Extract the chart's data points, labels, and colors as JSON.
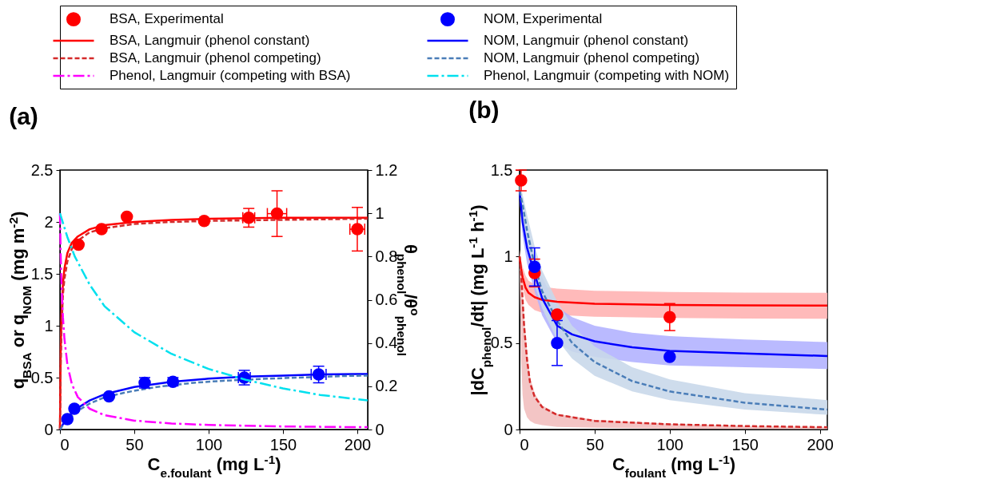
{
  "chart_data": [
    {
      "type": "line",
      "title": "(a)",
      "xlabel": "C$_{e,foulant}$ (mg L$^{-1}$)",
      "ylabel": "q$_{BSA}$ or q$_{NOM}$ (mg m$^{-2}$)",
      "y2label": "θ$_{phenol}$/θ$^{o}$$_{phenol}$",
      "xlim": [
        0,
        207
      ],
      "xticks": [
        0,
        50,
        100,
        150,
        200
      ],
      "ylim": [
        0,
        2.5
      ],
      "yticks": [
        0,
        0.5,
        1,
        1.5,
        2,
        2.5
      ],
      "y2lim": [
        0,
        1.2
      ],
      "y2ticks": [
        0,
        0.2,
        0.4,
        0.6,
        0.8,
        1,
        1.2
      ],
      "legend": "top",
      "series": [
        {
          "type": "scatter",
          "name": "BSA, Experimental",
          "color": "#ff0000",
          "marker": "circle",
          "x": [
            12.5,
            28,
            45,
            97,
            127,
            146,
            200
          ],
          "values": [
            1.78,
            1.93,
            2.05,
            2.01,
            2.04,
            2.08,
            1.93
          ],
          "errors": [
            null,
            null,
            null,
            null,
            0.09,
            0.22,
            0.21
          ],
          "xerrors": [
            null,
            null,
            null,
            null,
            4,
            6.5,
            5
          ]
        },
        {
          "type": "scatter",
          "name": "NOM, Experimental",
          "color": "#0000ff",
          "marker": "circle",
          "x": [
            5,
            9.7,
            33,
            57,
            76,
            124,
            174
          ],
          "values": [
            0.1,
            0.2,
            0.32,
            0.45,
            0.46,
            0.5,
            0.53
          ],
          "errors": [
            null,
            null,
            null,
            0.05,
            0.04,
            0.07,
            0.08
          ],
          "xerrors": [
            null,
            null,
            null,
            null,
            null,
            4,
            5
          ]
        },
        {
          "name": "BSA, Langmuir (phenol constant)",
          "color": "#ff0000",
          "line_style": "solid",
          "x": [
            0,
            0.5,
            1,
            2,
            3,
            5,
            8,
            12,
            20,
            30,
            50,
            75,
            100,
            150,
            200,
            207
          ],
          "values": [
            0,
            0.75,
            1.1,
            1.4,
            1.55,
            1.7,
            1.8,
            1.86,
            1.93,
            1.97,
            2.0,
            2.02,
            2.03,
            2.04,
            2.04,
            2.04
          ]
        },
        {
          "name": "NOM, Langmuir (phenol constant)",
          "color": "#0000ff",
          "line_style": "solid",
          "x": [
            0,
            2,
            5,
            10,
            20,
            30,
            50,
            75,
            100,
            125,
            150,
            175,
            200,
            207
          ],
          "values": [
            0,
            0.05,
            0.11,
            0.19,
            0.28,
            0.34,
            0.41,
            0.46,
            0.49,
            0.51,
            0.52,
            0.53,
            0.535,
            0.535
          ]
        },
        {
          "name": "BSA, Langmuir (phenol competing)",
          "color": "#d42a2a",
          "line_style": "dashed",
          "x": [
            0,
            0.5,
            1,
            2,
            3,
            5,
            8,
            12,
            20,
            30,
            50,
            75,
            100,
            150,
            200,
            207
          ],
          "values": [
            0,
            0.6,
            0.95,
            1.3,
            1.45,
            1.62,
            1.74,
            1.82,
            1.9,
            1.94,
            1.98,
            2.0,
            2.01,
            2.02,
            2.03,
            2.03
          ]
        },
        {
          "name": "NOM, Langmuir (phenol competing)",
          "color": "#4a7db8",
          "line_style": "dashed",
          "x": [
            0,
            2,
            5,
            12,
            20,
            30,
            45,
            65,
            90,
            110,
            140,
            160,
            190,
            207
          ],
          "values": [
            0,
            0.04,
            0.09,
            0.18,
            0.25,
            0.31,
            0.36,
            0.41,
            0.45,
            0.47,
            0.49,
            0.5,
            0.515,
            0.52
          ]
        },
        {
          "name": "Phenol, Langmuir (competing with BSA)",
          "color": "#ff00ff",
          "line_style": "dashdot",
          "axis": "y2",
          "x": [
            0,
            0.5,
            1,
            2,
            3,
            5,
            8,
            12,
            20,
            30,
            50,
            75,
            100,
            150,
            200,
            207
          ],
          "values": [
            1,
            0.81,
            0.68,
            0.52,
            0.42,
            0.3,
            0.21,
            0.15,
            0.096,
            0.066,
            0.041,
            0.028,
            0.021,
            0.014,
            0.011,
            0.011
          ]
        },
        {
          "name": "Phenol, Langmuir (competing with NOM)",
          "color": "#00e0ee",
          "line_style": "dashdot",
          "axis": "y2",
          "x": [
            0,
            5,
            10,
            20,
            30,
            50,
            75,
            100,
            125,
            150,
            175,
            200,
            207
          ],
          "values": [
            1,
            0.89,
            0.8,
            0.67,
            0.57,
            0.45,
            0.35,
            0.28,
            0.23,
            0.19,
            0.16,
            0.14,
            0.135
          ]
        }
      ]
    },
    {
      "type": "line",
      "title": "(b)",
      "xlabel": "C$_{foulant}$ (mg L$^{-1}$)",
      "ylabel": "|dC$_{phenol}$/dt| (mg L$^{-1}$ h$^{-1}$)",
      "xlim": [
        0,
        205
      ],
      "xticks": [
        0,
        50,
        100,
        150,
        200
      ],
      "ylim": [
        0,
        1.5
      ],
      "yticks": [
        0,
        0.5,
        1,
        1.5
      ],
      "legend": "top",
      "series": [
        {
          "type": "scatter",
          "name": "BSA, Experimental",
          "color": "#ff0000",
          "marker": "circle",
          "x": [
            1,
            10,
            25,
            100
          ],
          "values": [
            1.44,
            0.905,
            0.665,
            0.65
          ],
          "errors": [
            0.06,
            0.08,
            null,
            0.078
          ]
        },
        {
          "type": "scatter",
          "name": "NOM, Experimental",
          "color": "#0000ff",
          "marker": "circle",
          "x": [
            10,
            25,
            100
          ],
          "values": [
            0.94,
            0.5,
            0.42
          ],
          "errors": [
            0.11,
            0.13,
            null
          ]
        },
        {
          "name": "BSA, Langmuir (phenol constant)",
          "color": "#ff0000",
          "line_style": "solid",
          "x": [
            0,
            1,
            2,
            4,
            6,
            10,
            15,
            25,
            50,
            100,
            150,
            205
          ],
          "values": [
            1.0,
            0.93,
            0.88,
            0.82,
            0.79,
            0.765,
            0.75,
            0.738,
            0.727,
            0.72,
            0.718,
            0.716
          ],
          "lower": [
            0.96,
            0.88,
            0.82,
            0.75,
            0.72,
            0.69,
            0.675,
            0.662,
            0.652,
            0.645,
            0.642,
            0.64
          ],
          "upper": [
            1.04,
            0.98,
            0.94,
            0.89,
            0.86,
            0.84,
            0.825,
            0.815,
            0.802,
            0.795,
            0.792,
            0.79
          ]
        },
        {
          "name": "NOM, Langmuir (phenol constant)",
          "color": "#0000ff",
          "line_style": "solid",
          "x": [
            0,
            2,
            5,
            10,
            15,
            25,
            35,
            50,
            75,
            100,
            150,
            205
          ],
          "values": [
            1.38,
            1.2,
            1.05,
            0.9,
            0.76,
            0.6,
            0.55,
            0.51,
            0.475,
            0.455,
            0.44,
            0.425
          ],
          "lower": [
            1.34,
            1.12,
            0.96,
            0.8,
            0.66,
            0.5,
            0.45,
            0.42,
            0.39,
            0.37,
            0.36,
            0.35
          ],
          "upper": [
            1.42,
            1.28,
            1.14,
            1.0,
            0.88,
            0.71,
            0.65,
            0.6,
            0.56,
            0.54,
            0.52,
            0.505
          ]
        },
        {
          "name": "BSA, Langmuir (phenol competing)",
          "color": "#d42a2a",
          "line_style": "dashed",
          "x": [
            0,
            1,
            2,
            3,
            5,
            7,
            10,
            15,
            25,
            50,
            100,
            150,
            205
          ],
          "values": [
            1.0,
            0.9,
            0.75,
            0.6,
            0.4,
            0.27,
            0.19,
            0.13,
            0.085,
            0.05,
            0.03,
            0.02,
            0.013
          ],
          "lower": [
            0.9,
            0.4,
            0.2,
            0.12,
            0.07,
            0.05,
            0.035,
            0.025,
            0.015,
            0.01,
            0.005,
            0.003,
            0.002
          ],
          "upper": [
            1.0,
            0.92,
            0.8,
            0.66,
            0.45,
            0.3,
            0.21,
            0.14,
            0.09,
            0.055,
            0.033,
            0.022,
            0.015
          ]
        },
        {
          "name": "NOM, Langmuir (phenol competing)",
          "color": "#4a7db8",
          "line_style": "dashed",
          "x": [
            0,
            2,
            5,
            10,
            15,
            25,
            35,
            50,
            75,
            100,
            150,
            205
          ],
          "values": [
            1.38,
            1.3,
            1.15,
            0.95,
            0.8,
            0.63,
            0.5,
            0.39,
            0.28,
            0.22,
            0.155,
            0.115
          ],
          "lower": [
            1.34,
            1.22,
            1.04,
            0.84,
            0.7,
            0.52,
            0.41,
            0.31,
            0.22,
            0.17,
            0.115,
            0.085
          ],
          "upper": [
            1.42,
            1.36,
            1.24,
            1.06,
            0.92,
            0.74,
            0.6,
            0.48,
            0.36,
            0.29,
            0.21,
            0.17
          ]
        }
      ]
    }
  ]
}
